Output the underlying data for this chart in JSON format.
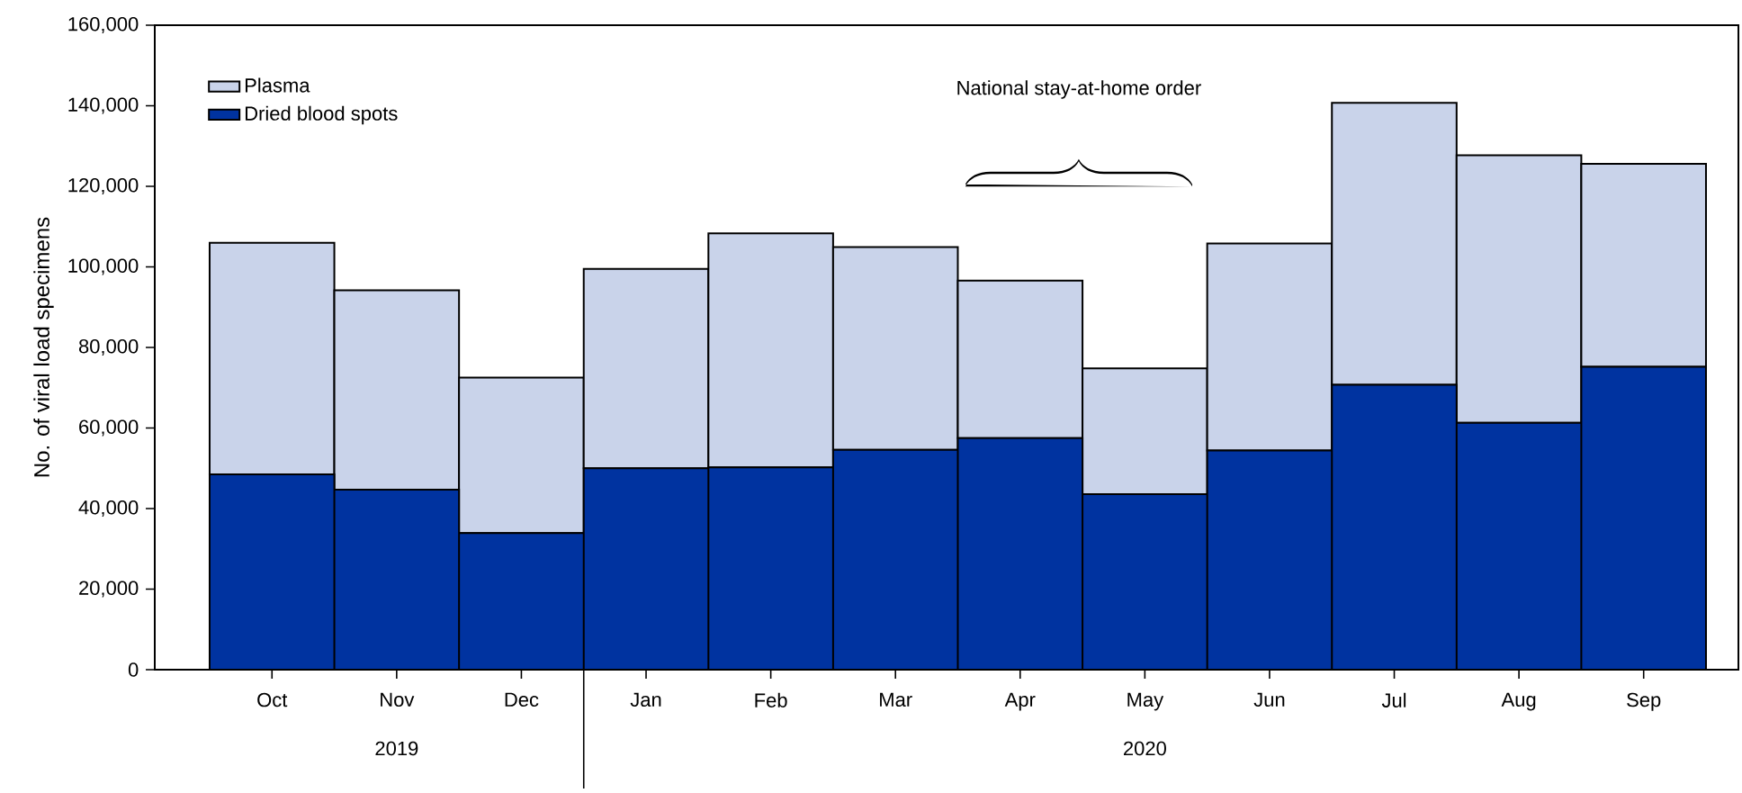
{
  "chart_data": {
    "type": "bar",
    "stacked": true,
    "ylabel": "No. of viral load specimens",
    "categories": [
      "Oct",
      "Nov",
      "Dec",
      "Jan",
      "Feb",
      "Mar",
      "Apr",
      "May",
      "Jun",
      "Jul",
      "Aug",
      "Sep"
    ],
    "series": [
      {
        "name": "Dried blood spots",
        "color": "#0033a0",
        "values": [
          48500,
          44700,
          33900,
          50000,
          50200,
          54600,
          57500,
          43600,
          54400,
          70700,
          61300,
          75200
        ]
      },
      {
        "name": "Plasma",
        "color": "#c9d3ea",
        "values": [
          57500,
          49500,
          38600,
          49500,
          58100,
          50300,
          39100,
          31200,
          51400,
          70000,
          66400,
          50400
        ]
      }
    ],
    "ylim": [
      0,
      160000
    ],
    "yticks": [
      {
        "value": 0,
        "label": "0"
      },
      {
        "value": 20000,
        "label": "20,000"
      },
      {
        "value": 40000,
        "label": "40,000"
      },
      {
        "value": 60000,
        "label": "60,000"
      },
      {
        "value": 80000,
        "label": "80,000"
      },
      {
        "value": 100000,
        "label": "100,000"
      },
      {
        "value": 120000,
        "label": "120,000"
      },
      {
        "value": 140000,
        "label": "140,000"
      },
      {
        "value": 160000,
        "label": "160,000"
      }
    ],
    "grid": false,
    "legend": "top left",
    "annotations": [
      "National stay-at-home order",
      "2019",
      "2020"
    ]
  }
}
